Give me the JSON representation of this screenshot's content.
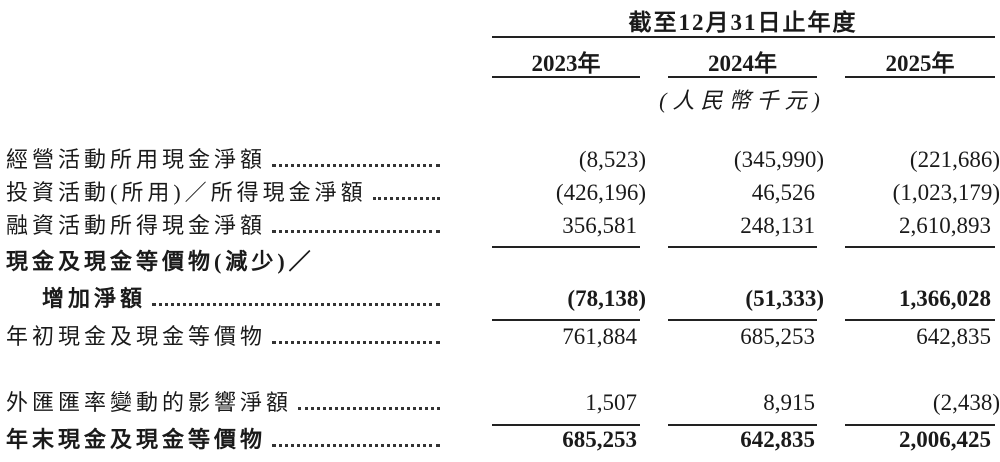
{
  "header": {
    "period": "截至12月31日止年度",
    "years": [
      "2023年",
      "2024年",
      "2025年"
    ],
    "unit": "(人民幣千元)"
  },
  "rows": [
    {
      "label": "經營活動所用現金淨額",
      "values": [
        "(8,523)",
        "(345,990)",
        "(221,686)"
      ],
      "bold": false
    },
    {
      "label": "投資活動(所用)／所得現金淨額",
      "values": [
        "(426,196)",
        "46,526",
        "(1,023,179)"
      ],
      "bold": false
    },
    {
      "label": "融資活動所得現金淨額",
      "values": [
        "356,581",
        "248,131",
        "2,610,893"
      ],
      "bold": false
    },
    {
      "label": "現金及現金等價物(減少)／",
      "label2": "增加淨額",
      "values": [
        "(78,138)",
        "(51,333)",
        "1,366,028"
      ],
      "bold": true
    },
    {
      "label": "年初現金及現金等價物",
      "values": [
        "761,884",
        "685,253",
        "642,835"
      ],
      "bold": false
    },
    {
      "label": "外匯匯率變動的影響淨額",
      "values": [
        "1,507",
        "8,915",
        "(2,438)"
      ],
      "bold": false
    },
    {
      "label": "年末現金及現金等價物",
      "values": [
        "685,253",
        "642,835",
        "2,006,425"
      ],
      "bold": true
    }
  ]
}
